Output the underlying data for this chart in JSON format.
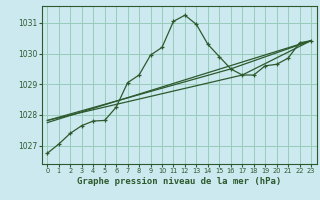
{
  "title": "Graphe pression niveau de la mer (hPa)",
  "background_color": "#cce9f0",
  "grid_color": "#99ccbb",
  "line_color": "#2d5a2d",
  "spine_color": "#2d5a2d",
  "xlim": [
    -0.5,
    23.5
  ],
  "ylim": [
    1026.4,
    1031.55
  ],
  "yticks": [
    1027,
    1028,
    1029,
    1030,
    1031
  ],
  "xticks": [
    0,
    1,
    2,
    3,
    4,
    5,
    6,
    7,
    8,
    9,
    10,
    11,
    12,
    13,
    14,
    15,
    16,
    17,
    18,
    19,
    20,
    21,
    22,
    23
  ],
  "series1_x": [
    0,
    1,
    2,
    3,
    4,
    5,
    6,
    7,
    8,
    9,
    10,
    11,
    12,
    13,
    14,
    15,
    16,
    17,
    18,
    19,
    20,
    21,
    22,
    23
  ],
  "series1_y": [
    1026.75,
    1027.05,
    1027.4,
    1027.65,
    1027.8,
    1027.82,
    1028.25,
    1029.05,
    1029.3,
    1029.95,
    1030.2,
    1031.05,
    1031.25,
    1030.95,
    1030.3,
    1029.9,
    1029.5,
    1029.3,
    1029.3,
    1029.6,
    1029.65,
    1029.85,
    1030.35,
    1030.42
  ],
  "series2_x": [
    0,
    23
  ],
  "series2_y": [
    1027.75,
    1030.42
  ],
  "series3_x": [
    0,
    16,
    23
  ],
  "series3_y": [
    1027.82,
    1029.5,
    1030.42
  ],
  "series4_x": [
    0,
    17,
    23
  ],
  "series4_y": [
    1027.82,
    1029.3,
    1030.42
  ],
  "title_fontsize": 6.5,
  "tick_fontsize": 5.5,
  "xtick_fontsize": 4.8
}
